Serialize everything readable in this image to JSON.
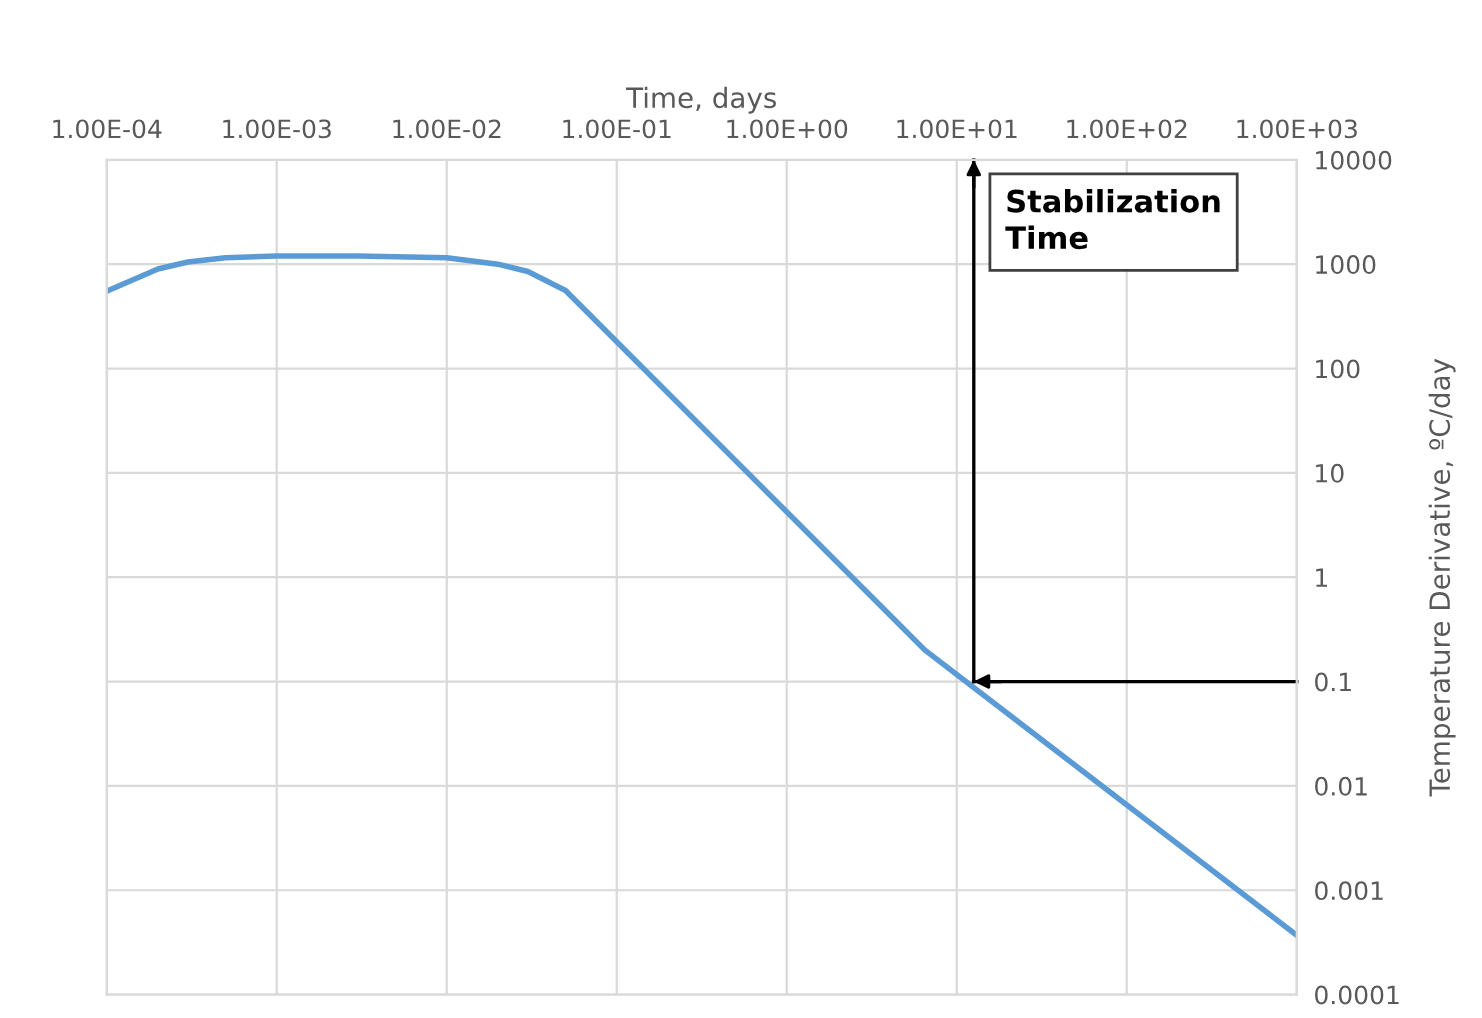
{
  "chart_data": {
    "type": "line",
    "xlabel": "Time, days",
    "ylabel": "Temperature Derivative, ºC/day",
    "log": "xy",
    "grid": true,
    "xlim": [
      0.0001,
      1000
    ],
    "ylim": [
      0.0001,
      10000
    ],
    "xticks": [
      {
        "value": 0.0001,
        "label": "1.00E-04"
      },
      {
        "value": 0.001,
        "label": "1.00E-03"
      },
      {
        "value": 0.01,
        "label": "1.00E-02"
      },
      {
        "value": 0.1,
        "label": "1.00E-01"
      },
      {
        "value": 1,
        "label": "1.00E+00"
      },
      {
        "value": 10,
        "label": "1.00E+01"
      },
      {
        "value": 100,
        "label": "1.00E+02"
      },
      {
        "value": 1000,
        "label": "1.00E+03"
      }
    ],
    "yticks": [
      0.0001,
      0.001,
      0.01,
      0.1,
      1,
      10,
      100,
      1000,
      10000
    ],
    "series": [
      {
        "color": "#5b9bd5",
        "x": [
          0.0001,
          0.0002,
          0.0003,
          0.0005,
          0.001,
          0.003,
          0.01,
          0.02,
          0.03,
          0.05,
          6.5,
          1000
        ],
        "values": [
          550,
          900,
          1050,
          1150,
          1200,
          1200,
          1150,
          1000,
          850,
          560,
          0.2,
          0.00037
        ]
      }
    ],
    "ref_lines": [
      {
        "axis": "x",
        "value": 12.6,
        "color": "#000000"
      },
      {
        "axis": "y",
        "value": 0.1,
        "color": "#000000"
      }
    ],
    "annotations": [
      "Stabilization Time"
    ]
  }
}
